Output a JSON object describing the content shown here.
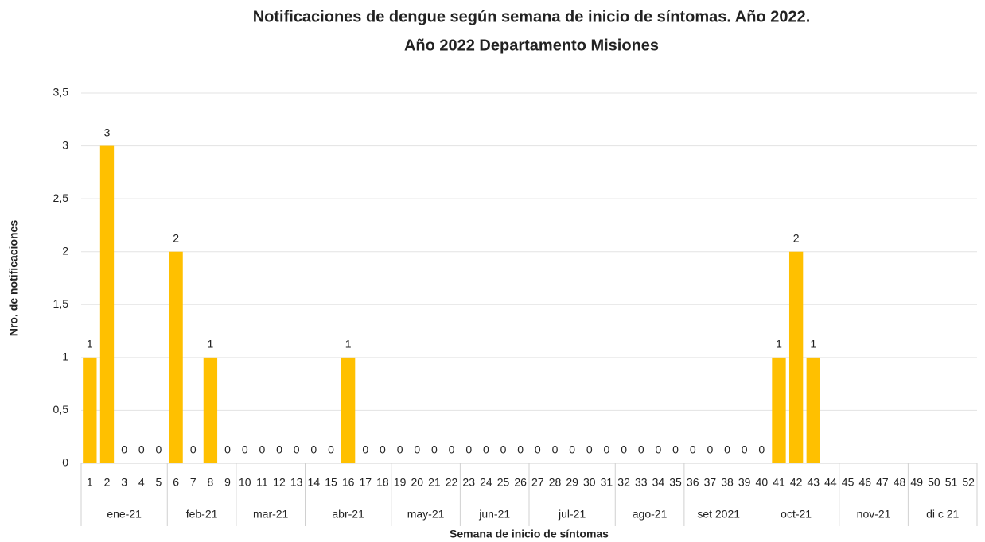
{
  "chart_data": {
    "type": "bar",
    "title": "Notificaciones de dengue según semana de inicio de síntomas. Año 2022.",
    "subtitle": "Año 2022 Departamento Misiones",
    "y_label": "Nro. de notificaciones",
    "x_label": "Semana de inicio de síntomas",
    "groups": [
      {
        "name": "ene-21",
        "categories": [
          "1",
          "2",
          "3",
          "4",
          "5"
        ]
      },
      {
        "name": "feb-21",
        "categories": [
          "6",
          "7",
          "8",
          "9"
        ]
      },
      {
        "name": "mar-21",
        "categories": [
          "10",
          "11",
          "12",
          "13"
        ]
      },
      {
        "name": "abr-21",
        "categories": [
          "14",
          "15",
          "16",
          "17",
          "18"
        ]
      },
      {
        "name": "may-21",
        "categories": [
          "19",
          "20",
          "21",
          "22"
        ]
      },
      {
        "name": "jun-21",
        "categories": [
          "23",
          "24",
          "25",
          "26"
        ]
      },
      {
        "name": "jul-21",
        "categories": [
          "27",
          "28",
          "29",
          "30",
          "31"
        ]
      },
      {
        "name": "ago-21",
        "categories": [
          "32",
          "33",
          "34",
          "35"
        ]
      },
      {
        "name": "set 2021",
        "categories": [
          "36",
          "37",
          "38",
          "39"
        ]
      },
      {
        "name": "oct-21",
        "categories": [
          "40",
          "41",
          "42",
          "43",
          "44"
        ]
      },
      {
        "name": "nov-21",
        "categories": [
          "45",
          "46",
          "47",
          "48"
        ]
      },
      {
        "name": "di c 21",
        "categories": [
          "49",
          "50",
          "51",
          "52"
        ]
      }
    ],
    "values": [
      1,
      3,
      0,
      0,
      0,
      2,
      0,
      1,
      0,
      0,
      0,
      0,
      0,
      0,
      0,
      1,
      0,
      0,
      0,
      0,
      0,
      0,
      0,
      0,
      0,
      0,
      0,
      0,
      0,
      0,
      0,
      0,
      0,
      0,
      0,
      0,
      0,
      0,
      0,
      0,
      1,
      2,
      1,
      null,
      null,
      null,
      null,
      null,
      null,
      null,
      null,
      null
    ],
    "color": "#ffc000",
    "ylim": [
      0,
      3.5
    ],
    "yticks": [
      0,
      {
        "value": 0.5,
        "label": "0,5"
      },
      1,
      {
        "value": 1.5,
        "label": "1,5"
      },
      2,
      {
        "value": 2.5,
        "label": "2,5"
      },
      3,
      {
        "value": 3.5,
        "label": "3,5"
      }
    ],
    "grid": true
  }
}
